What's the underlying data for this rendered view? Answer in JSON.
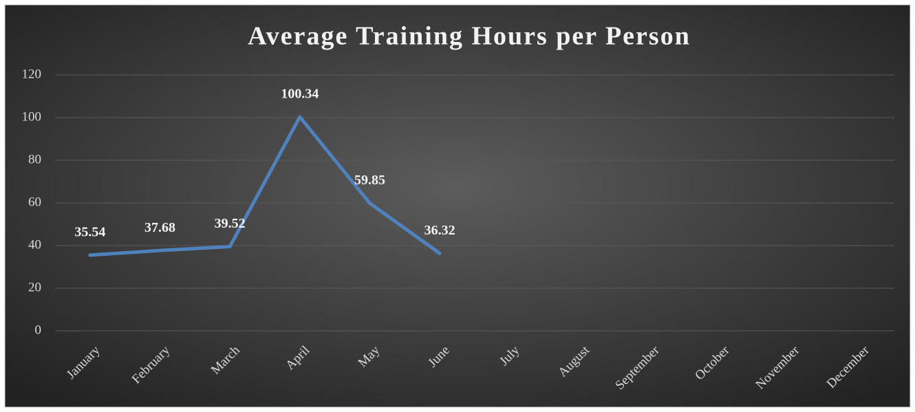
{
  "chart_data": {
    "type": "line",
    "title": "Average Training Hours per Person",
    "categories": [
      "January",
      "February",
      "March",
      "April",
      "May",
      "June",
      "July",
      "August",
      "September",
      "October",
      "November",
      "December"
    ],
    "values": [
      35.54,
      37.68,
      39.52,
      100.34,
      59.85,
      36.32,
      null,
      null,
      null,
      null,
      null,
      null
    ],
    "color": "#4f81bd",
    "ylim": [
      0,
      120
    ],
    "yticks": [
      0,
      20,
      40,
      60,
      80,
      100,
      120
    ],
    "grid": true
  }
}
